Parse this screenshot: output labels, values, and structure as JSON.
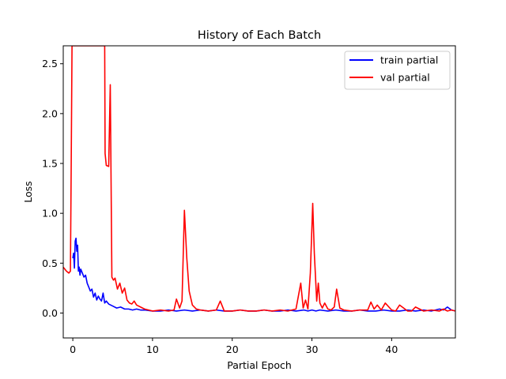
{
  "chart_data": {
    "type": "line",
    "title": "History of Each Batch",
    "xlabel": "Partial Epoch",
    "ylabel": "Loss",
    "xlim": [
      -1.2,
      48
    ],
    "ylim": [
      -0.25,
      2.68
    ],
    "xticks": [
      0,
      10,
      20,
      30,
      40
    ],
    "yticks": [
      0.0,
      0.5,
      1.0,
      1.5,
      2.0,
      2.5
    ],
    "xtick_labels": [
      "0",
      "10",
      "20",
      "30",
      "40"
    ],
    "ytick_labels": [
      "0.0",
      "0.5",
      "1.0",
      "1.5",
      "2.0",
      "2.5"
    ],
    "grid": false,
    "legend_position": "top-right",
    "series": [
      {
        "name": "train partial",
        "color": "#0000ff",
        "x": [
          0.0,
          0.1,
          0.2,
          0.3,
          0.4,
          0.5,
          0.6,
          0.7,
          0.8,
          0.9,
          1.0,
          1.2,
          1.4,
          1.6,
          1.8,
          2.0,
          2.2,
          2.4,
          2.6,
          2.8,
          3.0,
          3.2,
          3.4,
          3.6,
          3.8,
          4.0,
          4.2,
          4.5,
          5.0,
          5.5,
          6.0,
          6.5,
          7.0,
          7.5,
          8.0,
          8.5,
          9.0,
          10.0,
          11.0,
          12.0,
          13.0,
          14.0,
          15.0,
          16.0,
          17.0,
          18.0,
          19.0,
          20.0,
          21.0,
          22.0,
          23.0,
          24.0,
          25.0,
          26.0,
          27.0,
          28.0,
          29.0,
          29.5,
          30.0,
          30.5,
          31.0,
          32.0,
          33.0,
          34.0,
          35.0,
          36.0,
          37.0,
          38.0,
          39.0,
          40.0,
          41.0,
          42.0,
          43.0,
          44.0,
          45.0,
          46.0,
          46.5,
          47.0,
          47.5,
          48.0
        ],
        "y": [
          0.55,
          0.6,
          0.45,
          0.72,
          0.75,
          0.62,
          0.68,
          0.42,
          0.46,
          0.38,
          0.44,
          0.4,
          0.36,
          0.38,
          0.3,
          0.26,
          0.22,
          0.24,
          0.16,
          0.2,
          0.13,
          0.17,
          0.14,
          0.12,
          0.2,
          0.1,
          0.12,
          0.09,
          0.07,
          0.05,
          0.06,
          0.04,
          0.04,
          0.03,
          0.04,
          0.03,
          0.03,
          0.02,
          0.02,
          0.03,
          0.02,
          0.03,
          0.02,
          0.03,
          0.02,
          0.03,
          0.02,
          0.02,
          0.03,
          0.02,
          0.02,
          0.03,
          0.02,
          0.02,
          0.03,
          0.02,
          0.03,
          0.02,
          0.03,
          0.02,
          0.03,
          0.02,
          0.03,
          0.02,
          0.02,
          0.03,
          0.02,
          0.02,
          0.03,
          0.02,
          0.02,
          0.03,
          0.02,
          0.03,
          0.02,
          0.04,
          0.03,
          0.06,
          0.03,
          0.02
        ]
      },
      {
        "name": "val partial",
        "color": "#ff0000",
        "x": [
          -1.2,
          -0.8,
          -0.5,
          -0.3,
          -0.2,
          -0.1,
          4.0,
          4.05,
          4.2,
          4.5,
          4.7,
          4.9,
          5.1,
          5.3,
          5.6,
          5.9,
          6.2,
          6.5,
          6.8,
          7.1,
          7.4,
          7.7,
          8.0,
          8.5,
          9.0,
          9.5,
          10.0,
          11.0,
          12.0,
          12.7,
          13.0,
          13.4,
          13.7,
          14.0,
          14.3,
          14.6,
          15.0,
          15.5,
          16.0,
          17.0,
          18.0,
          18.5,
          19.0,
          20.0,
          21.0,
          22.0,
          23.0,
          24.0,
          25.0,
          26.0,
          27.0,
          28.0,
          28.6,
          28.9,
          29.2,
          29.5,
          29.8,
          30.1,
          30.3,
          30.6,
          30.8,
          31.0,
          31.3,
          31.6,
          32.0,
          32.4,
          32.8,
          33.1,
          33.5,
          34.0,
          35.0,
          36.0,
          37.0,
          37.4,
          37.8,
          38.2,
          38.7,
          39.2,
          40.0,
          40.5,
          41.0,
          42.0,
          42.5,
          43.0,
          44.0,
          45.0,
          46.0,
          46.5,
          47.0,
          47.5,
          48.0
        ],
        "y": [
          0.46,
          0.42,
          0.4,
          0.42,
          1.5,
          2.68,
          2.68,
          1.6,
          1.48,
          1.47,
          2.29,
          0.36,
          0.33,
          0.35,
          0.24,
          0.3,
          0.2,
          0.25,
          0.13,
          0.1,
          0.09,
          0.12,
          0.08,
          0.06,
          0.04,
          0.03,
          0.02,
          0.03,
          0.02,
          0.03,
          0.14,
          0.05,
          0.12,
          1.03,
          0.55,
          0.22,
          0.08,
          0.04,
          0.03,
          0.02,
          0.03,
          0.12,
          0.02,
          0.02,
          0.03,
          0.02,
          0.02,
          0.03,
          0.02,
          0.03,
          0.02,
          0.04,
          0.3,
          0.05,
          0.13,
          0.04,
          0.4,
          1.1,
          0.6,
          0.12,
          0.3,
          0.1,
          0.05,
          0.1,
          0.04,
          0.03,
          0.06,
          0.24,
          0.05,
          0.03,
          0.02,
          0.03,
          0.03,
          0.11,
          0.04,
          0.08,
          0.03,
          0.1,
          0.03,
          0.02,
          0.08,
          0.02,
          0.02,
          0.06,
          0.02,
          0.03,
          0.02,
          0.04,
          0.02,
          0.03,
          0.02
        ]
      }
    ]
  }
}
